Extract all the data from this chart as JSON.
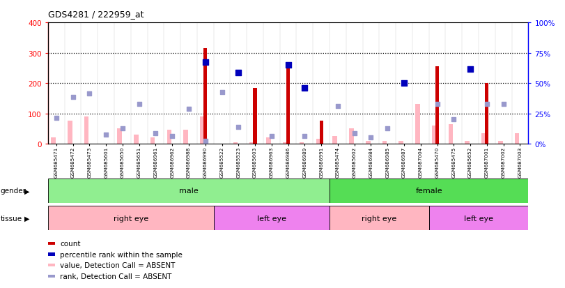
{
  "title": "GDS4281 / 222959_at",
  "samples": [
    "GSM685471",
    "GSM685472",
    "GSM685473",
    "GSM685601",
    "GSM685650",
    "GSM685651",
    "GSM686961",
    "GSM686962",
    "GSM686988",
    "GSM686990",
    "GSM685522",
    "GSM685523",
    "GSM685603",
    "GSM686963",
    "GSM686986",
    "GSM686989",
    "GSM686991",
    "GSM685474",
    "GSM685602",
    "GSM686984",
    "GSM686985",
    "GSM686987",
    "GSM687004",
    "GSM685470",
    "GSM685475",
    "GSM685652",
    "GSM687001",
    "GSM687002",
    "GSM687003"
  ],
  "count_red": [
    0,
    0,
    0,
    0,
    0,
    0,
    0,
    0,
    0,
    315,
    0,
    0,
    185,
    0,
    265,
    0,
    75,
    0,
    0,
    0,
    0,
    0,
    0,
    255,
    0,
    0,
    200,
    0,
    0
  ],
  "value_pink": [
    20,
    75,
    90,
    0,
    50,
    30,
    20,
    45,
    45,
    90,
    0,
    5,
    5,
    20,
    5,
    5,
    15,
    25,
    50,
    10,
    10,
    10,
    130,
    60,
    65,
    10,
    35,
    10,
    35
  ],
  "rank_blue_dark": [
    0,
    0,
    0,
    0,
    0,
    0,
    0,
    0,
    0,
    270,
    0,
    235,
    0,
    0,
    260,
    185,
    0,
    0,
    0,
    0,
    0,
    200,
    0,
    0,
    0,
    245,
    0,
    0,
    0
  ],
  "rank_blue_light": [
    85,
    155,
    165,
    30,
    50,
    130,
    35,
    25,
    115,
    10,
    170,
    55,
    0,
    25,
    0,
    25,
    0,
    125,
    35,
    20,
    50,
    0,
    0,
    130,
    80,
    0,
    130,
    130,
    0
  ],
  "gender_groups": [
    {
      "label": "male",
      "start": 0,
      "end": 16,
      "color": "#90EE90"
    },
    {
      "label": "female",
      "start": 17,
      "end": 28,
      "color": "#55DD55"
    }
  ],
  "tissue_groups": [
    {
      "label": "right eye",
      "start": 0,
      "end": 9,
      "color": "#FFB6C1"
    },
    {
      "label": "left eye",
      "start": 10,
      "end": 16,
      "color": "#EE82EE"
    },
    {
      "label": "right eye",
      "start": 17,
      "end": 22,
      "color": "#FFB6C1"
    },
    {
      "label": "left eye",
      "start": 23,
      "end": 28,
      "color": "#EE82EE"
    }
  ],
  "ylim_left": [
    0,
    400
  ],
  "yticks_left": [
    0,
    100,
    200,
    300,
    400
  ],
  "yticks_right": [
    0,
    25,
    50,
    75,
    100
  ],
  "ytick_labels_right": [
    "0%",
    "25%",
    "50%",
    "75%",
    "100%"
  ],
  "bar_color_red": "#CC0000",
  "bar_color_pink": "#FFB6C1",
  "dot_color_blue_dark": "#0000BB",
  "dot_color_blue_light": "#9999CC",
  "legend_items": [
    {
      "color": "#CC0000",
      "label": "count"
    },
    {
      "color": "#0000BB",
      "label": "percentile rank within the sample"
    },
    {
      "color": "#FFB6C1",
      "label": "value, Detection Call = ABSENT"
    },
    {
      "color": "#9999CC",
      "label": "rank, Detection Call = ABSENT"
    }
  ]
}
